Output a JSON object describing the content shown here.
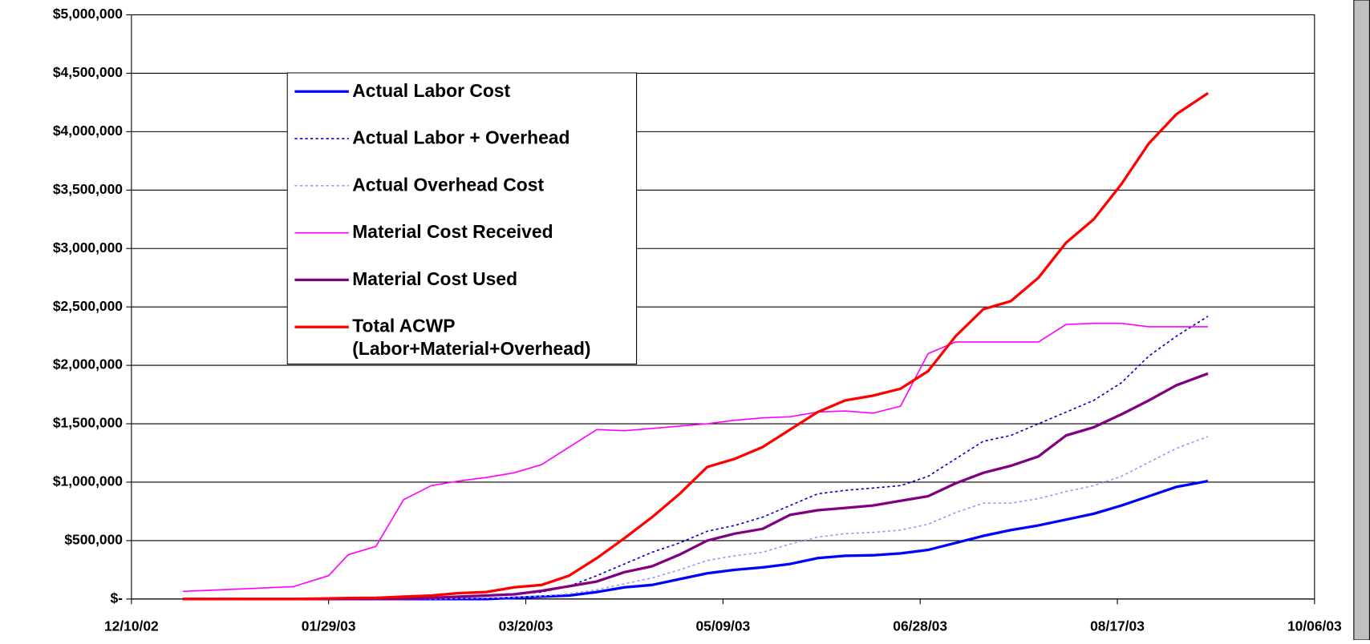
{
  "chart_data": {
    "type": "line",
    "x": [
      "12/23/02",
      "01/06/03",
      "01/20/03",
      "01/29/03",
      "02/03/03",
      "02/10/03",
      "02/17/03",
      "02/24/03",
      "03/03/03",
      "03/10/03",
      "03/17/03",
      "03/24/03",
      "03/31/03",
      "04/07/03",
      "04/14/03",
      "04/21/03",
      "04/28/03",
      "05/05/03",
      "05/12/03",
      "05/19/03",
      "05/26/03",
      "06/02/03",
      "06/09/03",
      "06/16/03",
      "06/23/03",
      "06/30/03",
      "07/07/03",
      "07/14/03",
      "07/21/03",
      "07/28/03",
      "08/04/03",
      "08/11/03",
      "08/18/03",
      "08/25/03",
      "09/01/03",
      "09/09/03"
    ],
    "series": [
      {
        "name": "Actual Labor Cost",
        "color": "#0000ff",
        "width": 3,
        "dash": "solid",
        "values": [
          0,
          0,
          0,
          0,
          0,
          0,
          0,
          0,
          0,
          0,
          10000,
          20000,
          30000,
          60000,
          100000,
          120000,
          170000,
          220000,
          250000,
          270000,
          300000,
          350000,
          370000,
          375000,
          390000,
          420000,
          480000,
          540000,
          590000,
          630000,
          680000,
          730000,
          800000,
          880000,
          960000,
          1010000
        ]
      },
      {
        "name": "Actual Labor + Overhead",
        "color": "#0000cc",
        "width": 1.5,
        "dash": "dotted",
        "values": [
          0,
          0,
          0,
          0,
          0,
          0,
          0,
          5000,
          15000,
          30000,
          40000,
          60000,
          110000,
          200000,
          300000,
          400000,
          480000,
          580000,
          630000,
          700000,
          800000,
          900000,
          930000,
          950000,
          970000,
          1050000,
          1200000,
          1350000,
          1400000,
          1500000,
          1600000,
          1700000,
          1850000,
          2080000,
          2250000,
          2420000
        ]
      },
      {
        "name": "Actual Overhead Cost",
        "color": "#9999ff",
        "width": 1.5,
        "dash": "dotted",
        "values": [
          0,
          0,
          0,
          0,
          0,
          0,
          0,
          0,
          5000,
          10000,
          15000,
          25000,
          45000,
          80000,
          130000,
          180000,
          250000,
          330000,
          370000,
          400000,
          470000,
          530000,
          560000,
          570000,
          590000,
          640000,
          740000,
          820000,
          820000,
          860000,
          920000,
          970000,
          1050000,
          1170000,
          1290000,
          1390000
        ]
      },
      {
        "name": "Material Cost Received",
        "color": "#ff00ff",
        "width": 1.5,
        "dash": "solid",
        "values": [
          65000,
          85000,
          105000,
          200000,
          380000,
          450000,
          850000,
          970000,
          1010000,
          1040000,
          1080000,
          1150000,
          1300000,
          1450000,
          1440000,
          1460000,
          1480000,
          1500000,
          1530000,
          1550000,
          1560000,
          1600000,
          1610000,
          1590000,
          1650000,
          2100000,
          2200000,
          2200000,
          2200000,
          2200000,
          2350000,
          2360000,
          2360000,
          2330000,
          2330000,
          2330000
        ]
      },
      {
        "name": "Material Cost Used",
        "color": "#800080",
        "width": 3,
        "dash": "solid",
        "values": [
          0,
          0,
          0,
          0,
          0,
          0,
          0,
          10000,
          20000,
          30000,
          40000,
          70000,
          110000,
          150000,
          230000,
          280000,
          380000,
          500000,
          560000,
          600000,
          720000,
          760000,
          780000,
          800000,
          840000,
          880000,
          990000,
          1080000,
          1140000,
          1220000,
          1400000,
          1470000,
          1580000,
          1700000,
          1830000,
          1930000
        ]
      },
      {
        "name": "Total ACWP\n(Labor+Material+Overhead)",
        "color": "#ff0000",
        "width": 3,
        "dash": "solid",
        "values": [
          0,
          0,
          0,
          5000,
          8000,
          10000,
          20000,
          30000,
          50000,
          60000,
          100000,
          120000,
          200000,
          350000,
          520000,
          700000,
          900000,
          1130000,
          1200000,
          1300000,
          1450000,
          1600000,
          1700000,
          1740000,
          1800000,
          1950000,
          2250000,
          2480000,
          2550000,
          2750000,
          3050000,
          3250000,
          3550000,
          3900000,
          4150000,
          4330000
        ]
      }
    ],
    "xlim": [
      "12/10/02",
      "10/06/03"
    ],
    "xticks": [
      "12/10/02",
      "01/29/03",
      "03/20/03",
      "05/09/03",
      "06/28/03",
      "08/17/03",
      "10/06/03"
    ],
    "ylim": [
      0,
      5000000
    ],
    "yticks": [
      {
        "value": 0,
        "label": "$-"
      },
      {
        "value": 500000,
        "label": "$500,000"
      },
      {
        "value": 1000000,
        "label": "$1,000,000"
      },
      {
        "value": 1500000,
        "label": "$1,500,000"
      },
      {
        "value": 2000000,
        "label": "$2,000,000"
      },
      {
        "value": 2500000,
        "label": "$2,500,000"
      },
      {
        "value": 3000000,
        "label": "$3,000,000"
      },
      {
        "value": 3500000,
        "label": "$3,500,000"
      },
      {
        "value": 4000000,
        "label": "$4,000,000"
      },
      {
        "value": 4500000,
        "label": "$4,500,000"
      },
      {
        "value": 5000000,
        "label": "$5,000,000"
      }
    ],
    "grid": true
  }
}
